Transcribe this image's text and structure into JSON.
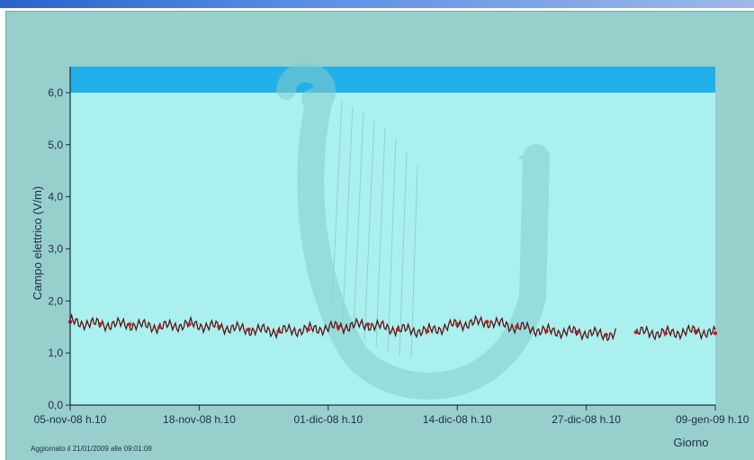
{
  "chart_data": {
    "type": "line",
    "title": "",
    "ylabel": "Campo elettrico (V/m)",
    "xlabel": "Giorno",
    "ylim": [
      0,
      6.5
    ],
    "yticks": [
      "0,0",
      "1,0",
      "2,0",
      "3,0",
      "4,0",
      "5,0",
      "6,0"
    ],
    "xticks": [
      "05-nov-08 h.10",
      "18-nov-08 h.10",
      "01-dic-08 h.10",
      "14-dic-08 h.10",
      "27-dic-08 h.10",
      "09-gen-09 h.10"
    ],
    "threshold_band": {
      "from": 6.0,
      "to": 6.5,
      "color": "#22b0ea"
    },
    "plot_background": "#aaf0ef",
    "grid": false,
    "series": [
      {
        "color": "#5a1414",
        "marker_color": "#c41e1e",
        "x": [
          "05-nov-08 h.10",
          "08-nov-08 h.10",
          "11-nov-08 h.10",
          "14-nov-08 h.10",
          "17-nov-08 h.10",
          "20-nov-08 h.10",
          "23-nov-08 h.10",
          "26-nov-08 h.10",
          "29-nov-08 h.10",
          "02-dic-08 h.10",
          "05-dic-08 h.10",
          "08-dic-08 h.10",
          "11-dic-08 h.10",
          "14-dic-08 h.10",
          "17-dic-08 h.10",
          "20-dic-08 h.10",
          "23-dic-08 h.10",
          "26-dic-08 h.10",
          "29-dic-08 h.10",
          "01-gen-09 h.10",
          "04-gen-09 h.10",
          "07-gen-09 h.10",
          "09-gen-09 h.10"
        ],
        "values": [
          1.6,
          1.55,
          1.55,
          1.5,
          1.55,
          1.5,
          1.45,
          1.42,
          1.45,
          1.5,
          1.55,
          1.45,
          1.42,
          1.55,
          1.6,
          1.5,
          1.42,
          1.4,
          1.35,
          1.4,
          1.38,
          1.42,
          1.38
        ],
        "gaps": [
          [
            "30-dic-08 h.10",
            "01-gen-09 h.10"
          ]
        ]
      }
    ]
  },
  "footer": {
    "updated_note": "Aggiornato il 21/01/2009 alle 09:01:08"
  },
  "colors": {
    "panel": "#97cfcd",
    "plot_area": "#aaf0ef",
    "band": "#22b0ea",
    "axis": "#1f2d44",
    "watermark": "#8ed3d3"
  },
  "watermark": {
    "icon": "harp-logo-icon"
  }
}
